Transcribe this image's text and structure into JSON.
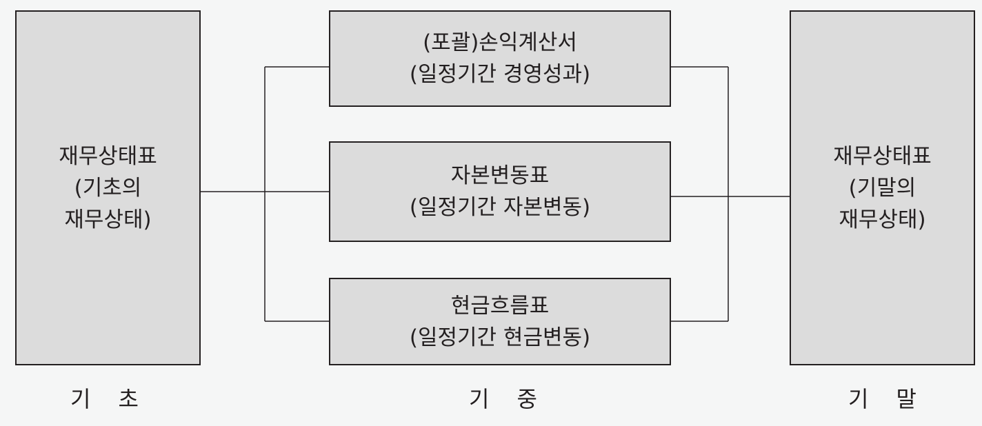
{
  "colors": {
    "background": "#f5f6f6",
    "box_fill": "#dcdcdc",
    "stroke": "#231f20"
  },
  "boxes": {
    "beginning": {
      "lines": [
        "재무상태표",
        "(기초의",
        "재무상태)"
      ]
    },
    "income": {
      "lines": [
        "(포괄)손익계산서",
        "(일정기간 경영성과)"
      ]
    },
    "equity": {
      "lines": [
        "자본변동표",
        "(일정기간 자본변동)"
      ]
    },
    "cashflow": {
      "lines": [
        "현금흐름표",
        "(일정기간 현금변동)"
      ]
    },
    "ending": {
      "lines": [
        "재무상태표",
        "(기말의",
        "재무상태)"
      ]
    }
  },
  "period_labels": {
    "beginning": [
      "기",
      "초"
    ],
    "during": [
      "기",
      "중"
    ],
    "ending": [
      "기",
      "말"
    ]
  }
}
